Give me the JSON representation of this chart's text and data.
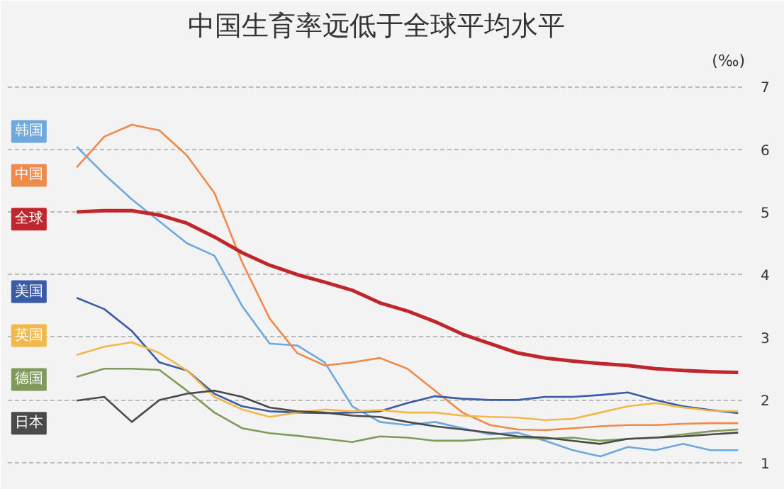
{
  "chart_data": {
    "type": "line",
    "title": "中国生育率远低于全球平均水平",
    "ylabel": "(‰)",
    "categories": [
      null,
      null,
      null,
      null,
      null,
      null,
      null,
      null,
      null,
      null,
      null,
      null,
      null,
      null,
      null,
      null,
      null,
      null,
      null,
      null,
      null,
      null,
      null,
      null,
      null
    ],
    "ylim": [
      0.75,
      7.6
    ],
    "yticks": [
      1,
      2,
      3,
      4,
      5,
      6,
      7
    ],
    "grid": "y",
    "legend": "left",
    "line_style": "solid",
    "marker": "none",
    "series": [
      {
        "name": "韩国",
        "color": "#6fa8dc",
        "values": [
          6.04,
          5.6,
          5.2,
          4.85,
          4.5,
          4.3,
          3.5,
          2.9,
          2.87,
          2.6,
          1.9,
          1.65,
          1.6,
          1.65,
          1.55,
          1.45,
          1.48,
          1.35,
          1.2,
          1.1,
          1.25,
          1.2,
          1.3,
          1.2,
          1.2
        ]
      },
      {
        "name": "中国",
        "color": "#f08a4b",
        "values": [
          5.71,
          6.2,
          6.39,
          6.3,
          5.9,
          5.3,
          4.2,
          3.3,
          2.75,
          2.55,
          2.6,
          2.67,
          2.5,
          2.15,
          1.8,
          1.6,
          1.53,
          1.52,
          1.55,
          1.58,
          1.6,
          1.6,
          1.62,
          1.63,
          1.63
        ]
      },
      {
        "name": "全球",
        "color": "#c0272d",
        "values": [
          5.0,
          5.02,
          5.02,
          4.95,
          4.82,
          4.6,
          4.35,
          4.15,
          4.0,
          3.88,
          3.75,
          3.55,
          3.42,
          3.25,
          3.05,
          2.9,
          2.75,
          2.67,
          2.62,
          2.58,
          2.55,
          2.5,
          2.47,
          2.45,
          2.44
        ]
      },
      {
        "name": "美国",
        "color": "#3a5ba8",
        "values": [
          3.63,
          3.45,
          3.1,
          2.6,
          2.47,
          2.1,
          1.9,
          1.82,
          1.8,
          1.79,
          1.8,
          1.82,
          1.95,
          2.06,
          2.02,
          2.0,
          2.0,
          2.05,
          2.05,
          2.08,
          2.12,
          2.0,
          1.9,
          1.84,
          1.79
        ]
      },
      {
        "name": "英国",
        "color": "#f2b84b",
        "values": [
          2.72,
          2.85,
          2.92,
          2.75,
          2.47,
          2.05,
          1.85,
          1.73,
          1.8,
          1.85,
          1.82,
          1.84,
          1.8,
          1.8,
          1.75,
          1.73,
          1.72,
          1.68,
          1.7,
          1.8,
          1.9,
          1.95,
          1.88,
          1.83,
          1.82
        ]
      },
      {
        "name": "德国",
        "color": "#7f9a5a",
        "values": [
          2.37,
          2.5,
          2.5,
          2.48,
          2.15,
          1.8,
          1.55,
          1.47,
          1.43,
          1.38,
          1.33,
          1.42,
          1.4,
          1.35,
          1.35,
          1.38,
          1.4,
          1.38,
          1.4,
          1.35,
          1.38,
          1.4,
          1.45,
          1.5,
          1.53
        ]
      },
      {
        "name": "日本",
        "color": "#4a4a4a",
        "values": [
          1.99,
          2.05,
          1.65,
          2.0,
          2.1,
          2.15,
          2.05,
          1.88,
          1.82,
          1.8,
          1.75,
          1.73,
          1.65,
          1.58,
          1.53,
          1.48,
          1.42,
          1.4,
          1.35,
          1.3,
          1.38,
          1.4,
          1.42,
          1.45,
          1.48
        ]
      }
    ]
  }
}
